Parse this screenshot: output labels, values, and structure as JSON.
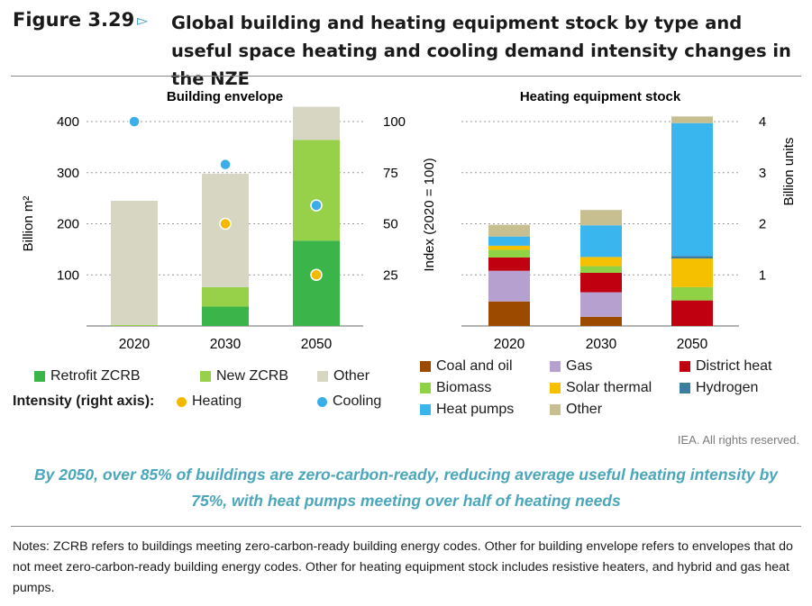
{
  "header": {
    "figure_number": "Figure 3.29",
    "title": "Global building and heating equipment stock by type and useful space heating and cooling demand intensity changes in the NZE"
  },
  "colors": {
    "retrofit": "#3bb54a",
    "new_zcrb": "#97d14a",
    "other_env": "#d7d6c3",
    "heating_dot": "#f5b800",
    "cooling_dot": "#3aaee8",
    "coal": "#9c4a00",
    "gas": "#b6a0cf",
    "district": "#c00010",
    "biomass": "#8fd246",
    "solar": "#f5c000",
    "hydrogen": "#3c7ea0",
    "heatpumps": "#3ab6ee",
    "other_eq": "#c8bf91",
    "accent": "#4aa6bb"
  },
  "chart_data": [
    {
      "type": "bar",
      "title": "Building envelope",
      "categories": [
        "2020",
        "2030",
        "2050"
      ],
      "ylabel": "Billion m²",
      "y2label": "Index (2020 = 100)",
      "ylim": [
        0,
        400
      ],
      "y2lim": [
        0,
        100
      ],
      "yticks": [
        "100",
        "200",
        "300",
        "400"
      ],
      "y2ticks": [
        "25",
        "50",
        "75",
        "100"
      ],
      "stacked": true,
      "series": [
        {
          "name": "Retrofit ZCRB",
          "values": [
            0,
            38,
            167
          ]
        },
        {
          "name": "New ZCRB",
          "values": [
            2,
            38,
            197
          ]
        },
        {
          "name": "Other",
          "values": [
            243,
            222,
            65
          ]
        }
      ],
      "markers": [
        {
          "name": "Heating",
          "axis": "right",
          "values": [
            null,
            50,
            25
          ]
        },
        {
          "name": "Cooling",
          "axis": "right",
          "values": [
            100,
            79,
            59
          ]
        }
      ],
      "legend_intensity_label": "Intensity  (right axis):",
      "grid": "dotted"
    },
    {
      "type": "bar",
      "title": "Heating equipment stock",
      "categories": [
        "2020",
        "2030",
        "2050"
      ],
      "ylabel": "Billion units",
      "ylim": [
        0,
        4
      ],
      "yticks": [
        "1",
        "2",
        "3",
        "4"
      ],
      "stacked": true,
      "series": [
        {
          "name": "Coal and oil",
          "values": [
            0.48,
            0.18,
            0.0
          ]
        },
        {
          "name": "Gas",
          "values": [
            0.6,
            0.48,
            0.0
          ]
        },
        {
          "name": "District heat",
          "values": [
            0.26,
            0.38,
            0.5
          ]
        },
        {
          "name": "Biomass",
          "values": [
            0.15,
            0.13,
            0.26
          ]
        },
        {
          "name": "Solar thermal",
          "values": [
            0.08,
            0.18,
            0.56
          ]
        },
        {
          "name": "Hydrogen",
          "values": [
            0.0,
            0.0,
            0.05
          ]
        },
        {
          "name": "Heat pumps",
          "values": [
            0.18,
            0.62,
            2.6
          ]
        },
        {
          "name": "Other",
          "values": [
            0.23,
            0.3,
            0.13
          ]
        }
      ],
      "grid": "dotted"
    }
  ],
  "credit": "IEA. All rights reserved.",
  "summary": "By 2050, over 85% of buildings are zero-carbon-ready, reducing average useful heating intensity by 75%, with heat pumps meeting over half of heating needs",
  "notes": "Notes: ZCRB refers to buildings meeting zero-carbon-ready building energy codes. Other for building envelope refers to envelopes that do not meet zero-carbon-ready building energy codes. Other for heating equipment stock includes resistive heaters, and hybrid and gas heat pumps."
}
